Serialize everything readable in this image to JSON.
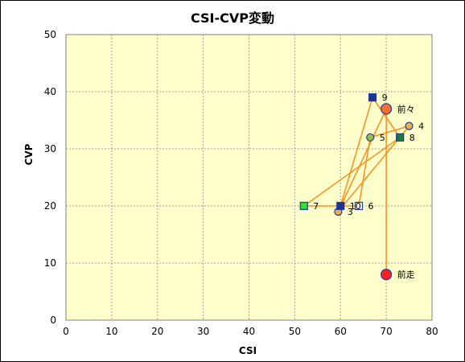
{
  "chart_data": {
    "type": "scatter",
    "title": "CSI-CVP変動",
    "xlabel": "CSI",
    "ylabel": "CVP",
    "xlim": [
      0,
      80
    ],
    "ylim": [
      0,
      50
    ],
    "xticks": [
      0,
      10,
      20,
      30,
      40,
      50,
      60,
      70,
      80
    ],
    "yticks": [
      0,
      10,
      20,
      30,
      40,
      50
    ],
    "grid": true,
    "legend": "none",
    "colors": {
      "plot_bg": "#FFFFCC",
      "grid": "#A0A0A0",
      "line": "#FF8C1A",
      "marker_border": "#1F3D99"
    },
    "points": [
      {
        "label": "前走",
        "x": 70,
        "y": 8,
        "marker": "circle",
        "fill": "#FF2020",
        "size": "large"
      },
      {
        "label": "前々",
        "x": 70,
        "y": 37,
        "marker": "circle",
        "fill": "#F07030",
        "size": "large"
      },
      {
        "label": "3",
        "x": 59.5,
        "y": 19,
        "marker": "circle",
        "fill": "#F0B040",
        "size": "small"
      },
      {
        "label": "4",
        "x": 75,
        "y": 34,
        "marker": "circle",
        "fill": "#F0B040",
        "size": "small"
      },
      {
        "label": "5",
        "x": 66.5,
        "y": 32,
        "marker": "circle",
        "fill": "#A0C030",
        "size": "small"
      },
      {
        "label": "6",
        "x": 64,
        "y": 20,
        "marker": "square",
        "fill": "#FFFFFF",
        "size": "small"
      },
      {
        "label": "7",
        "x": 52,
        "y": 20,
        "marker": "square",
        "fill": "#33DD33",
        "size": "small"
      },
      {
        "label": "8",
        "x": 73,
        "y": 32,
        "marker": "square",
        "fill": "#1A7A3A",
        "size": "small"
      },
      {
        "label": "9",
        "x": 67,
        "y": 39,
        "marker": "square",
        "fill": "#1A3399",
        "size": "small"
      },
      {
        "label": "10",
        "x": 60,
        "y": 20,
        "marker": "square",
        "fill": "#1A3399",
        "size": "small"
      }
    ],
    "path_order": [
      "前走",
      "前々",
      "3",
      "4",
      "5",
      "6",
      "7",
      "8",
      "9",
      "10"
    ]
  }
}
